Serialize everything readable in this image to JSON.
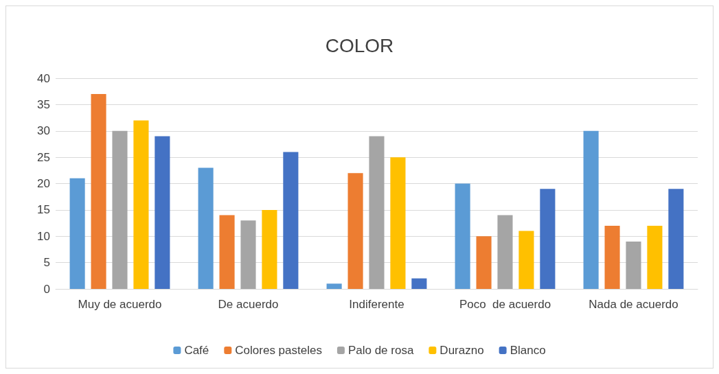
{
  "chart_data": {
    "type": "bar",
    "title": "COLOR",
    "categories": [
      "Muy de acuerdo",
      "De acuerdo",
      "Indiferente",
      "Poco  de acuerdo",
      "Nada de acuerdo"
    ],
    "series": [
      {
        "name": "Café",
        "color": "#5b9bd5",
        "values": [
          21,
          23,
          1,
          20,
          30
        ]
      },
      {
        "name": "Colores pasteles",
        "color": "#ed7d31",
        "values": [
          37,
          14,
          22,
          10,
          12
        ]
      },
      {
        "name": "Palo de rosa",
        "color": "#a5a5a5",
        "values": [
          30,
          13,
          29,
          14,
          9
        ]
      },
      {
        "name": "Durazno",
        "color": "#ffc000",
        "values": [
          32,
          15,
          25,
          11,
          12
        ]
      },
      {
        "name": "Blanco",
        "color": "#4472c4",
        "values": [
          29,
          26,
          2,
          19,
          19
        ]
      }
    ],
    "ylim": [
      0,
      40
    ],
    "yticks": [
      0,
      5,
      10,
      15,
      20,
      25,
      30,
      35,
      40
    ],
    "grid": "y",
    "legend": "bottom"
  }
}
